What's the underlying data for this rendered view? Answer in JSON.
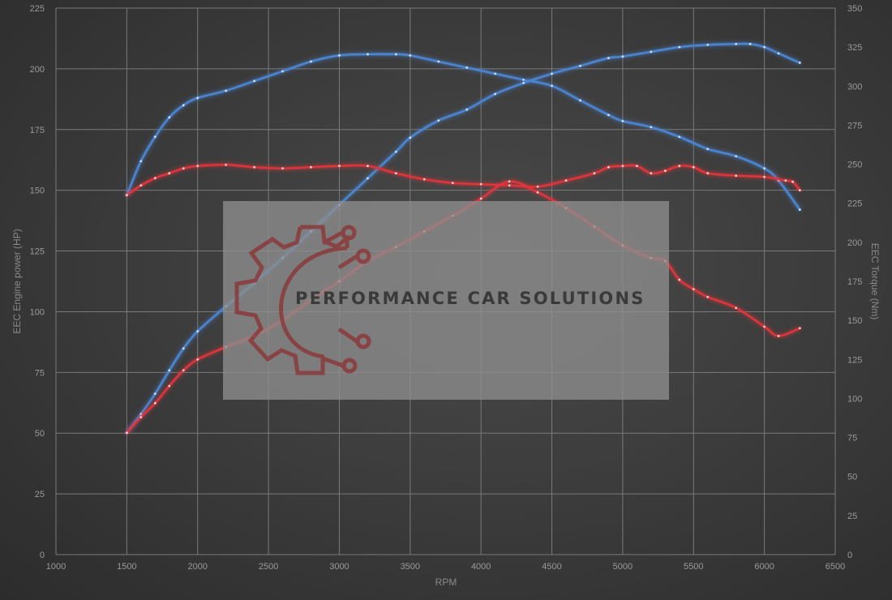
{
  "chart_data": {
    "type": "line",
    "xlabel": "RPM",
    "ylabel_left": "EEC Engine power (HP)",
    "ylabel_right": "EEC Torque (Nm)",
    "xlim": [
      1000,
      6500
    ],
    "ylim_left": [
      0,
      225
    ],
    "ylim_right": [
      0,
      350
    ],
    "x_ticks": [
      1000,
      1500,
      2000,
      2500,
      3000,
      3500,
      4000,
      4500,
      5000,
      5500,
      6000,
      6500
    ],
    "y_left_ticks": [
      0,
      25,
      50,
      75,
      100,
      125,
      150,
      175,
      200,
      225
    ],
    "y_right_ticks": [
      0,
      25,
      50,
      75,
      100,
      125,
      150,
      175,
      200,
      225,
      250,
      275,
      300,
      325,
      350
    ],
    "grid": true,
    "series": [
      {
        "axis": "left",
        "color": "#4b86d4",
        "x": [
          1500,
          1600,
          1700,
          1800,
          1900,
          2000,
          2200,
          2400,
          2600,
          2800,
          3000,
          3200,
          3400,
          3500,
          3700,
          3900,
          4100,
          4300,
          4500,
          4700,
          4900,
          5000,
          5200,
          5400,
          5600,
          5800,
          6000,
          6100,
          6250
        ],
        "y": [
          148,
          162,
          172,
          180,
          185,
          188,
          191,
          195,
          199,
          203,
          205.5,
          206,
          206,
          205.5,
          203,
          200.5,
          198,
          195.5,
          193,
          187,
          181,
          178.5,
          176,
          172,
          167,
          164,
          159,
          154,
          142
        ]
      },
      {
        "axis": "right",
        "color": "#4b86d4",
        "x": [
          1500,
          1600,
          1700,
          1800,
          1900,
          2000,
          2200,
          2400,
          2600,
          2800,
          3000,
          3200,
          3400,
          3500,
          3700,
          3900,
          4100,
          4300,
          4500,
          4700,
          4900,
          5000,
          5200,
          5400,
          5600,
          5800,
          5900,
          6000,
          6100,
          6250
        ],
        "y": [
          78,
          90,
          103,
          118,
          132,
          143,
          159,
          174,
          190,
          207,
          224,
          241,
          258,
          267,
          278,
          285,
          295,
          302,
          308,
          313,
          318,
          319,
          322,
          325,
          326.5,
          327,
          327,
          325,
          321,
          315
        ]
      },
      {
        "axis": "left",
        "color": "#e0343a",
        "x": [
          1500,
          1600,
          1700,
          1800,
          1900,
          2000,
          2200,
          2400,
          2600,
          2800,
          3000,
          3200,
          3400,
          3600,
          3800,
          4000,
          4200,
          4400,
          4600,
          4800,
          4900,
          5000,
          5100,
          5200,
          5300,
          5400,
          5500,
          5600,
          5800,
          6000,
          6150,
          6200,
          6250
        ],
        "y": [
          148,
          152,
          155,
          157,
          159,
          160,
          160.5,
          159.5,
          159,
          159.5,
          160,
          160,
          157,
          154.5,
          153,
          152.5,
          152,
          151.5,
          154,
          157,
          159.5,
          160,
          160,
          157,
          158,
          160,
          159.5,
          157,
          156,
          155.5,
          154,
          153.5,
          150
        ]
      },
      {
        "axis": "right",
        "color": "#e0343a",
        "x": [
          1500,
          1600,
          1700,
          1800,
          1900,
          2000,
          2200,
          2400,
          2600,
          2800,
          3000,
          3200,
          3400,
          3600,
          3800,
          4000,
          4200,
          4400,
          4600,
          4800,
          5000,
          5200,
          5300,
          5400,
          5500,
          5600,
          5800,
          6000,
          6100,
          6250
        ],
        "y": [
          78,
          88,
          97,
          108,
          118,
          125,
          133,
          140,
          150,
          163,
          175,
          188,
          197,
          207,
          217,
          228,
          239,
          232,
          222,
          210,
          198,
          190,
          188,
          176,
          170,
          165,
          158,
          146,
          140,
          145
        ]
      }
    ]
  },
  "watermark": {
    "text": "PERFORMANCE CAR SOLUTIONS",
    "panel_color": "#8e8e8e",
    "logo_color": "#8b3b3b"
  }
}
